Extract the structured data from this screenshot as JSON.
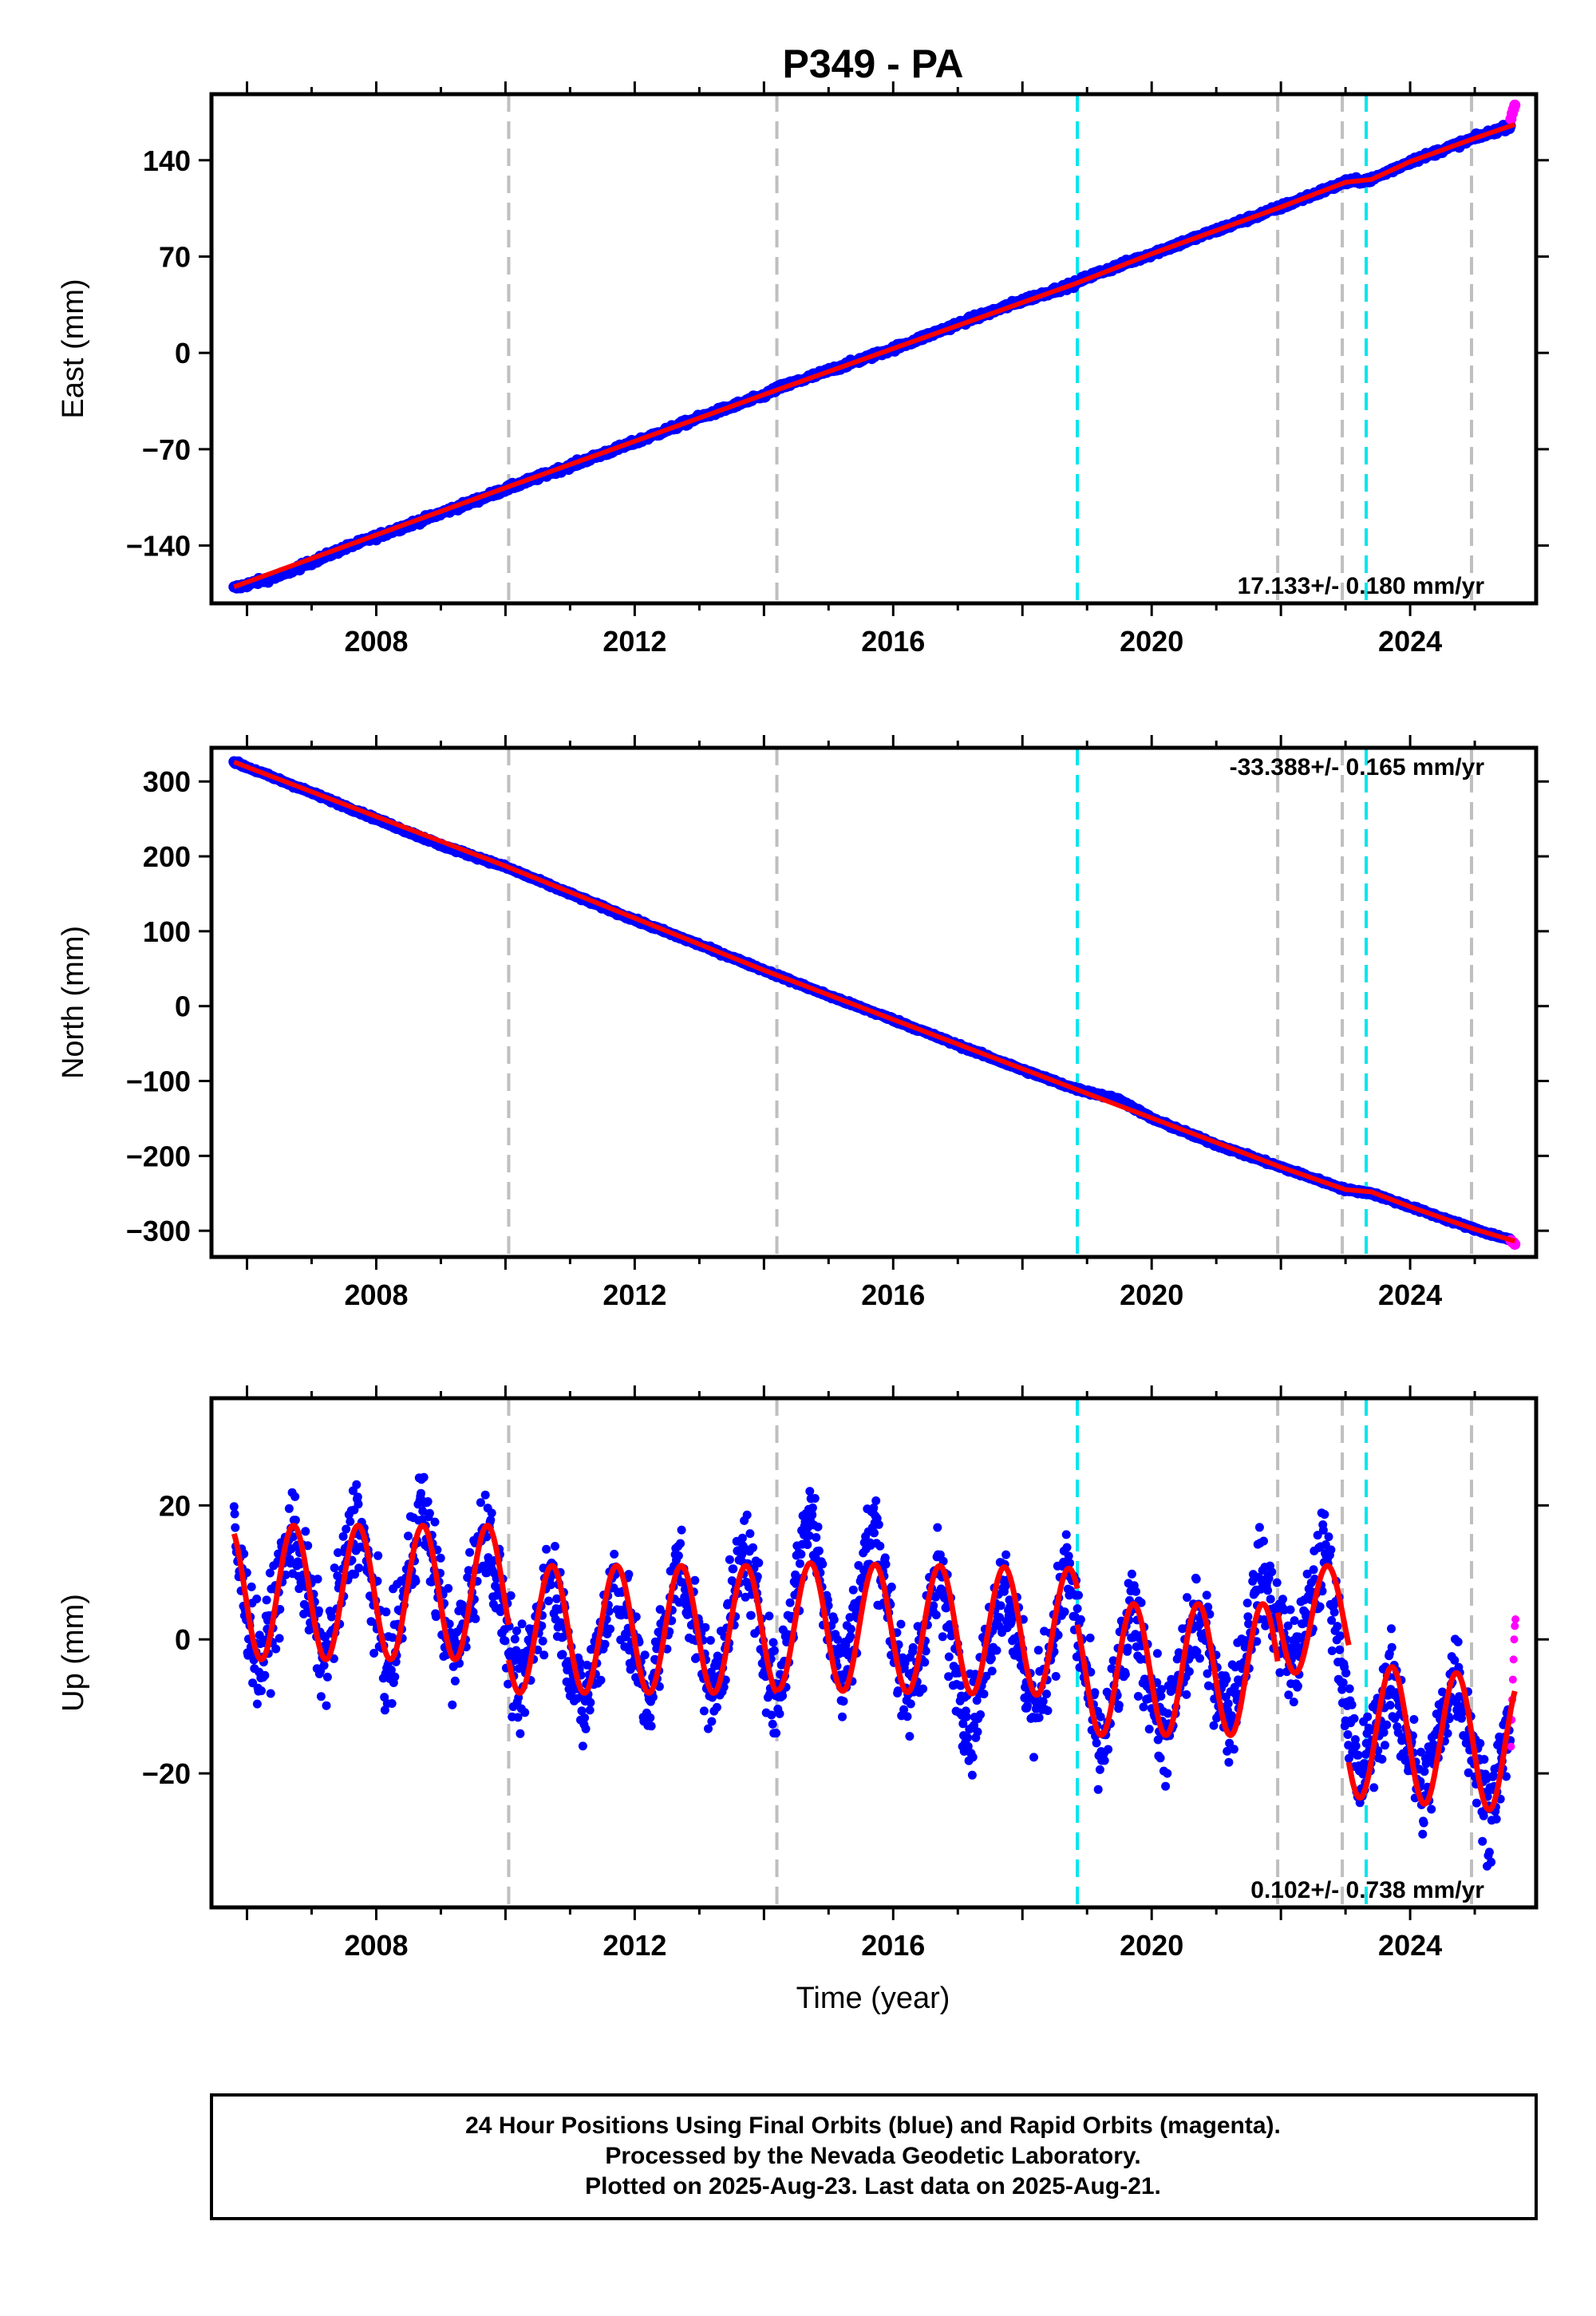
{
  "title": "P349 - PA",
  "xlabel": "Time (year)",
  "colors": {
    "final_points": "#0000ff",
    "rapid_points": "#ff00ff",
    "model_line": "#ff0000",
    "event_line_gray": "#bfbfbf",
    "event_line_cyan": "#00e6ee"
  },
  "footer": {
    "line1": "24 Hour Positions Using Final Orbits (blue) and Rapid Orbits (magenta).",
    "line2": "Processed by the Nevada Geodetic Laboratory.",
    "line3": "Plotted on 2025-Aug-23. Last data on 2025-Aug-21."
  },
  "chart_data": [
    {
      "type": "scatter",
      "ylabel": "East (mm)",
      "rate_text": "17.133+/- 0.180 mm/yr",
      "xlim": [
        2005.45,
        2025.95
      ],
      "ylim": [
        -182,
        188
      ],
      "xticks": [
        2008,
        2012,
        2016,
        2020,
        2024
      ],
      "yticks": [
        -140,
        -70,
        0,
        70,
        140
      ],
      "grid": false,
      "series": [
        {
          "kind": "final",
          "x": [
            2005.8,
            2006.5,
            2007.5,
            2008.5,
            2009.5,
            2010.0,
            2011.0,
            2012.0,
            2013.0,
            2014.0,
            2014.2,
            2015.0,
            2016.0,
            2017.0,
            2018.0,
            2018.8,
            2019.0,
            2020.0,
            2021.0,
            2022.0,
            2023.0,
            2023.4,
            2024.0,
            2025.0,
            2025.55
          ],
          "y": [
            -171,
            -162,
            -142,
            -125,
            -108,
            -99,
            -82,
            -65,
            -47,
            -31,
            -26,
            -13,
            3,
            21,
            38,
            50,
            55,
            72,
            89,
            106,
            124,
            126,
            139,
            156,
            165
          ]
        },
        {
          "kind": "rapid",
          "x": [
            2025.56,
            2025.58,
            2025.6,
            2025.62
          ],
          "y": [
            170,
            174,
            177,
            180
          ]
        },
        {
          "kind": "model",
          "x": [
            2005.8,
            2010.0,
            2014.2,
            2018.8,
            2020.0,
            2022.0,
            2023.0,
            2023.4,
            2024.0,
            2025.0,
            2025.62
          ],
          "y": [
            -170,
            -98,
            -27,
            50,
            72,
            106,
            124,
            126,
            139,
            156,
            166
          ]
        }
      ]
    },
    {
      "type": "scatter",
      "ylabel": "North (mm)",
      "rate_text": "-33.388+/- 0.165 mm/yr",
      "xlim": [
        2005.45,
        2025.95
      ],
      "ylim": [
        -335,
        345
      ],
      "xticks": [
        2008,
        2012,
        2016,
        2020,
        2024
      ],
      "yticks": [
        -300,
        -200,
        -100,
        0,
        100,
        200,
        300
      ],
      "grid": false,
      "series": [
        {
          "kind": "final",
          "x": [
            2005.8,
            2007.0,
            2008.0,
            2009.0,
            2010.0,
            2011.0,
            2012.0,
            2013.0,
            2014.0,
            2015.0,
            2016.0,
            2017.0,
            2018.0,
            2018.8,
            2019.5,
            2020.0,
            2021.0,
            2022.0,
            2023.0,
            2023.4,
            2024.0,
            2025.0,
            2025.55
          ],
          "y": [
            326,
            285,
            250,
            215,
            186,
            150,
            115,
            82,
            48,
            14,
            -18,
            -52,
            -85,
            -110,
            -125,
            -150,
            -185,
            -215,
            -245,
            -250,
            -268,
            -298,
            -312
          ]
        },
        {
          "kind": "rapid",
          "x": [
            2025.56,
            2025.58,
            2025.6,
            2025.62
          ],
          "y": [
            -313,
            -315,
            -316,
            -318
          ]
        },
        {
          "kind": "model",
          "x": [
            2005.8,
            2010.0,
            2014.0,
            2018.8,
            2022.0,
            2023.0,
            2023.4,
            2024.0,
            2025.0,
            2025.62
          ],
          "y": [
            326,
            187,
            48,
            -110,
            -215,
            -245,
            -248,
            -268,
            -298,
            -314
          ]
        }
      ]
    },
    {
      "type": "scatter",
      "ylabel": "Up (mm)",
      "rate_text": "0.102+/- 0.738 mm/yr",
      "xlim": [
        2005.45,
        2025.95
      ],
      "ylim": [
        -40,
        36
      ],
      "xticks": [
        2008,
        2012,
        2016,
        2020,
        2024
      ],
      "yticks": [
        -20,
        0,
        20
      ],
      "grid": false,
      "series": [
        {
          "kind": "final",
          "x": [
            2005.8,
            2006.2,
            2006.7,
            2007.2,
            2007.7,
            2008.2,
            2008.7,
            2009.2,
            2009.7,
            2010.2,
            2010.7,
            2011.2,
            2011.7,
            2012.2,
            2012.7,
            2013.2,
            2013.7,
            2014.2,
            2014.7,
            2015.2,
            2015.7,
            2016.2,
            2016.7,
            2017.2,
            2017.7,
            2018.2,
            2018.7,
            2019.2,
            2019.7,
            2020.2,
            2020.7,
            2021.2,
            2021.7,
            2022.2,
            2022.7,
            2023.2,
            2023.7,
            2024.2,
            2024.7,
            2025.2,
            2025.55
          ],
          "y": [
            15,
            -5,
            17,
            -4,
            19,
            -6,
            21,
            -4,
            18,
            -9,
            11,
            -11,
            10,
            -10,
            12,
            -9,
            14,
            -10,
            20,
            -7,
            18,
            -10,
            10,
            -14,
            10,
            -12,
            11,
            -18,
            4,
            -15,
            4,
            -12,
            10,
            -4,
            14,
            -22,
            -6,
            -24,
            -4,
            -26,
            -13
          ]
        },
        {
          "kind": "rapid",
          "x": [
            2025.56,
            2025.57,
            2025.58,
            2025.59,
            2025.6,
            2025.61,
            2025.62,
            2025.63
          ],
          "y": [
            -16,
            -12,
            -9,
            -6,
            -3,
            0,
            2,
            3
          ]
        }
      ],
      "model": {
        "segments": [
          {
            "from": 2005.8,
            "to": 2010.05,
            "offset": 7,
            "amplitude": 10,
            "trend": 0
          },
          {
            "from": 2010.05,
            "to": 2014.2,
            "offset": 1.5,
            "amplitude": 9.5,
            "trend": 0
          },
          {
            "from": 2014.2,
            "to": 2018.85,
            "offset": 2,
            "amplitude": 9.5,
            "trend": -0.2
          },
          {
            "from": 2018.85,
            "to": 2021.95,
            "offset": -4.5,
            "amplitude": 9.8,
            "trend": 0
          },
          {
            "from": 2021.95,
            "to": 2023.05,
            "offset": 3,
            "amplitude": 8,
            "trend": 0
          },
          {
            "from": 2023.05,
            "to": 2025.62,
            "offset": -13.5,
            "amplitude": 10,
            "trend": -0.9
          }
        ]
      }
    }
  ],
  "event_lines": {
    "gray": [
      2010.05,
      2014.2,
      2021.95,
      2022.95,
      2024.95
    ],
    "cyan": [
      2018.85,
      2023.32
    ]
  }
}
